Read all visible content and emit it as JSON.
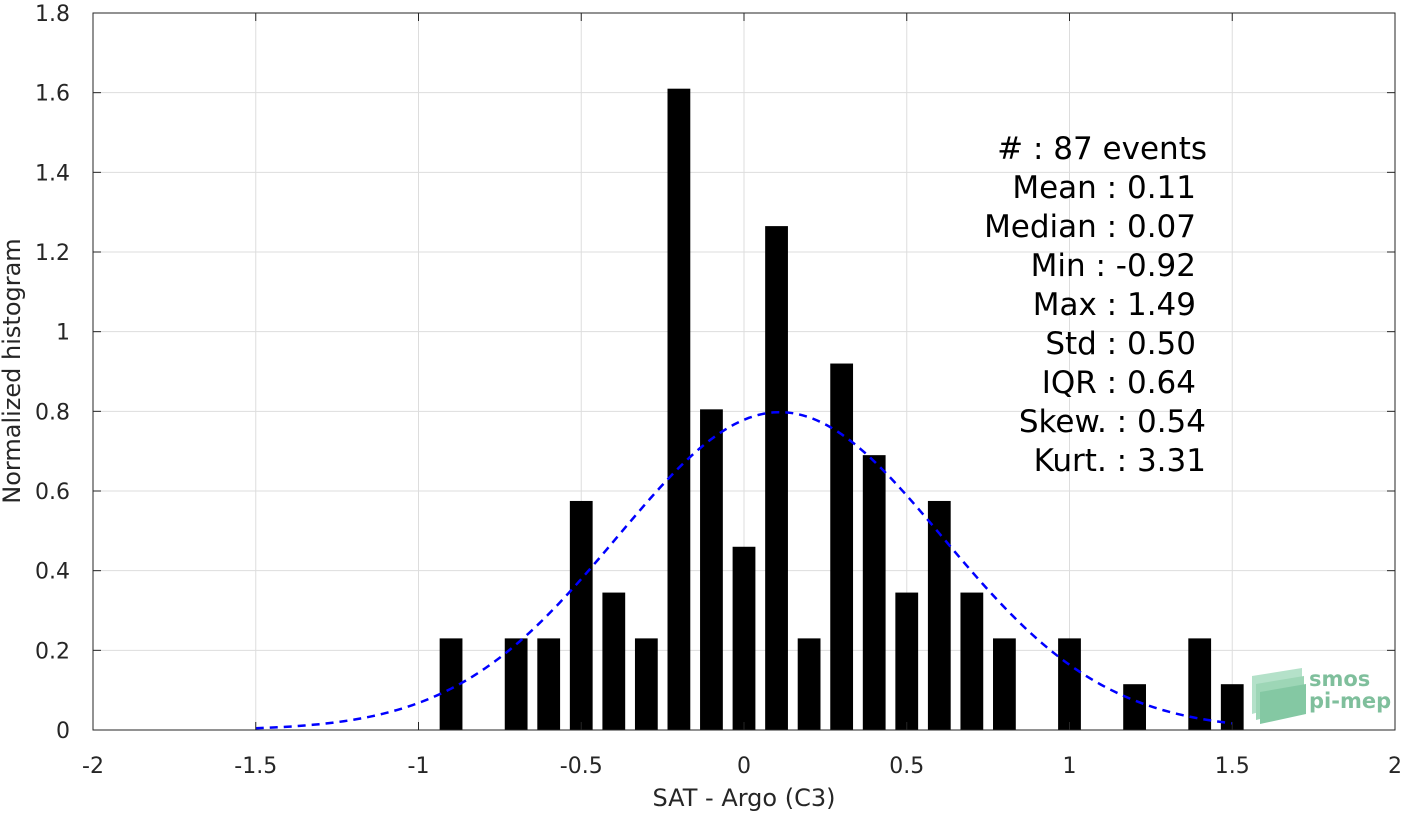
{
  "chart_data": {
    "type": "bar",
    "xlabel": "SAT - Argo (C3)",
    "ylabel": "Normalized histogram",
    "xlim": [
      -2,
      2
    ],
    "ylim": [
      0,
      1.8
    ],
    "grid": true,
    "x_ticks": [
      -2,
      -1.5,
      -1,
      -0.5,
      0,
      0.5,
      1,
      1.5,
      2
    ],
    "x_tick_labels": [
      "-2",
      "-1.5",
      "-1",
      "-0.5",
      "0",
      "0.5",
      "1",
      "1.5",
      "2"
    ],
    "y_ticks": [
      0,
      0.2,
      0.4,
      0.6,
      0.8,
      1,
      1.2,
      1.4,
      1.6,
      1.8
    ],
    "y_tick_labels": [
      "0",
      "0.2",
      "0.4",
      "0.6",
      "0.8",
      "1",
      "1.2",
      "1.4",
      "1.6",
      "1.8"
    ],
    "bar_width": 0.07,
    "bar_color": "#000000",
    "bars": [
      {
        "x": -0.9,
        "y": 0.23
      },
      {
        "x": -0.7,
        "y": 0.23
      },
      {
        "x": -0.6,
        "y": 0.23
      },
      {
        "x": -0.5,
        "y": 0.575
      },
      {
        "x": -0.4,
        "y": 0.345
      },
      {
        "x": -0.3,
        "y": 0.23
      },
      {
        "x": -0.2,
        "y": 1.61
      },
      {
        "x": -0.1,
        "y": 0.805
      },
      {
        "x": 0.0,
        "y": 0.46
      },
      {
        "x": 0.1,
        "y": 1.265
      },
      {
        "x": 0.2,
        "y": 0.23
      },
      {
        "x": 0.3,
        "y": 0.92
      },
      {
        "x": 0.4,
        "y": 0.69
      },
      {
        "x": 0.5,
        "y": 0.345
      },
      {
        "x": 0.6,
        "y": 0.575
      },
      {
        "x": 0.7,
        "y": 0.345
      },
      {
        "x": 0.8,
        "y": 0.23
      },
      {
        "x": 1.0,
        "y": 0.23
      },
      {
        "x": 1.2,
        "y": 0.115
      },
      {
        "x": 1.4,
        "y": 0.23
      },
      {
        "x": 1.5,
        "y": 0.115
      }
    ],
    "fit_curve": {
      "style": "dashed",
      "color": "#0000ff",
      "mean": 0.11,
      "std": 0.5,
      "x_range": [
        -1.5,
        1.5
      ]
    },
    "annotation_lines": [
      "#  : 87 events",
      "Mean : 0.11",
      "Median : 0.07",
      "Min : -0.92",
      "Max : 1.49",
      "Std : 0.50",
      "IQR : 0.64",
      "Skew. : 0.54",
      "Kurt. : 3.31"
    ]
  },
  "logo": {
    "line1": "smos",
    "line2": "pi-mep",
    "color": "#7fbf9c"
  }
}
